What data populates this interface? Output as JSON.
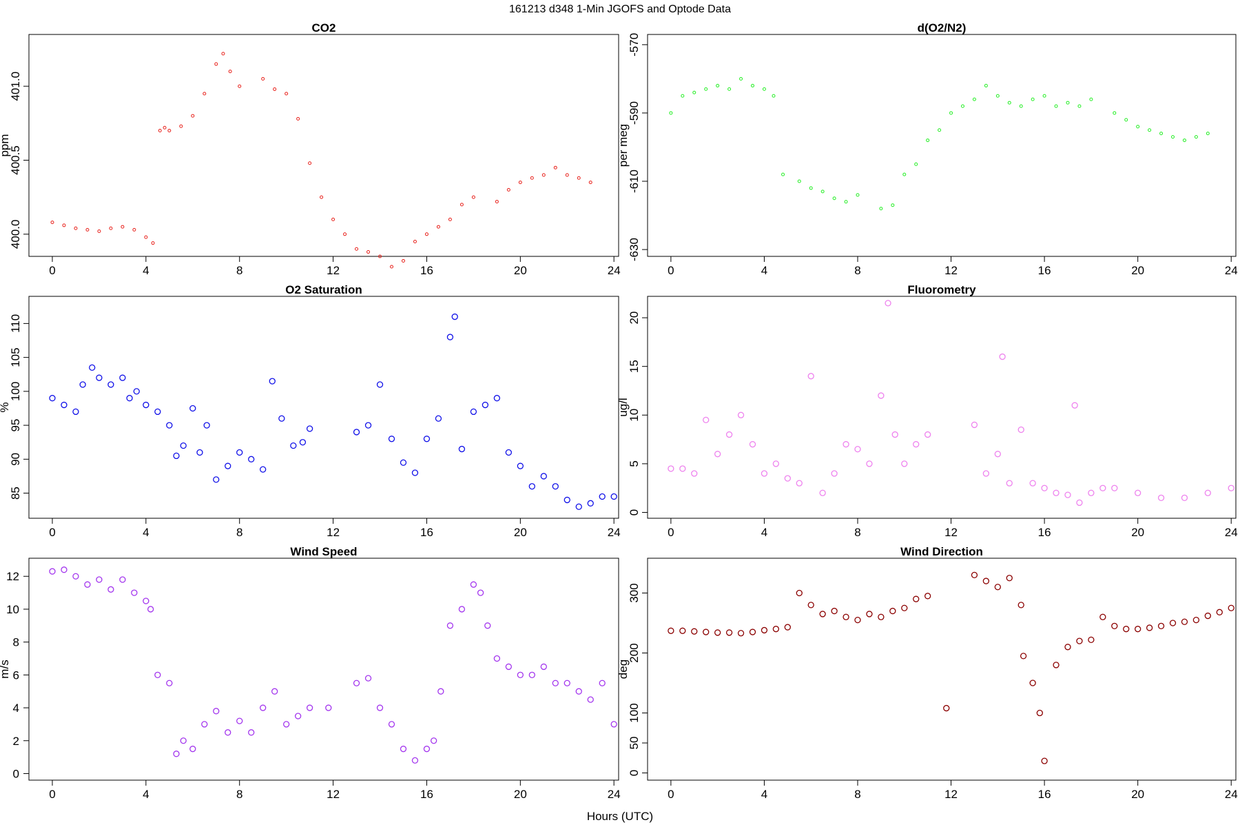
{
  "figure_title": "161213   d348   1-Min  JGOFS and Optode Data",
  "x_axis_label": "Hours (UTC)",
  "chart_data": [
    {
      "type": "scatter",
      "title": "CO2",
      "ylabel": "ppm",
      "xlabel": "",
      "xlim": [
        -1,
        24.2
      ],
      "ylim": [
        399.85,
        401.35
      ],
      "xticks": [
        0,
        4,
        8,
        12,
        16,
        20,
        24
      ],
      "xtick_labels": [
        "0",
        "4",
        "8",
        "12",
        "16",
        "20",
        "24"
      ],
      "yticks": [
        400.0,
        400.5,
        401.0
      ],
      "ytick_labels": [
        "400.0",
        "400.5",
        "401.0"
      ],
      "rotate_yticks": true,
      "marker": "small-circle",
      "color": "#e8201a",
      "series": [
        {
          "name": "CO2",
          "x": [
            0,
            0.5,
            1,
            1.5,
            2,
            2.5,
            3,
            3.5,
            4,
            4.3,
            4.6,
            4.8,
            5,
            5.5,
            6,
            6.5,
            7,
            7.3,
            7.6,
            8,
            9,
            9.5,
            10,
            10.5,
            11,
            11.5,
            12,
            12.5,
            13,
            13.5,
            14,
            14.5,
            15,
            15.5,
            16,
            16.5,
            17,
            17.5,
            18,
            19,
            19.5,
            20,
            20.5,
            21,
            21.5,
            22,
            22.5,
            23
          ],
          "y": [
            400.08,
            400.06,
            400.04,
            400.03,
            400.02,
            400.04,
            400.05,
            400.03,
            399.98,
            399.94,
            400.7,
            400.72,
            400.7,
            400.73,
            400.8,
            400.95,
            401.15,
            401.22,
            401.1,
            401.0,
            401.05,
            400.98,
            400.95,
            400.78,
            400.48,
            400.25,
            400.1,
            400.0,
            399.9,
            399.88,
            399.85,
            399.78,
            399.82,
            399.95,
            400.0,
            400.05,
            400.1,
            400.2,
            400.25,
            400.22,
            400.3,
            400.35,
            400.38,
            400.4,
            400.45,
            400.4,
            400.38,
            400.35
          ]
        }
      ]
    },
    {
      "type": "scatter",
      "title": "d(O2/N2)",
      "ylabel": "per meg",
      "xlabel": "",
      "xlim": [
        -1,
        24.2
      ],
      "ylim": [
        -632,
        -567
      ],
      "xticks": [
        0,
        4,
        8,
        12,
        16,
        20,
        24
      ],
      "xtick_labels": [
        "0",
        "4",
        "8",
        "12",
        "16",
        "20",
        "24"
      ],
      "yticks": [
        -630,
        -610,
        -590,
        -570
      ],
      "ytick_labels": [
        "-630",
        "-610",
        "-590",
        "-570"
      ],
      "rotate_yticks": true,
      "marker": "small-circle",
      "color": "#22ee22",
      "series": [
        {
          "name": "d(O2/N2)",
          "x": [
            0,
            0.5,
            1,
            1.5,
            2,
            2.5,
            3,
            3.5,
            4,
            4.4,
            4.8,
            5.5,
            6,
            6.5,
            7,
            7.5,
            8,
            9,
            9.5,
            10,
            10.5,
            11,
            11.5,
            12,
            12.5,
            13,
            13.5,
            14,
            14.5,
            15,
            15.5,
            16,
            16.5,
            17,
            17.5,
            18,
            19,
            19.5,
            20,
            20.5,
            21,
            21.5,
            22,
            22.5,
            23
          ],
          "y": [
            -590,
            -585,
            -584,
            -583,
            -582,
            -583,
            -580,
            -582,
            -583,
            -585,
            -608,
            -610,
            -612,
            -613,
            -615,
            -616,
            -614,
            -618,
            -617,
            -608,
            -605,
            -598,
            -595,
            -590,
            -588,
            -586,
            -582,
            -585,
            -587,
            -588,
            -586,
            -585,
            -588,
            -587,
            -588,
            -586,
            -590,
            -592,
            -594,
            -595,
            -596,
            -597,
            -598,
            -597,
            -596
          ]
        }
      ]
    },
    {
      "type": "scatter",
      "title": "O2 Saturation",
      "ylabel": "%",
      "xlabel": "",
      "xlim": [
        -1,
        24.2
      ],
      "ylim": [
        81.3,
        114
      ],
      "xticks": [
        0,
        4,
        8,
        12,
        16,
        20,
        24
      ],
      "xtick_labels": [
        "0",
        "4",
        "8",
        "12",
        "16",
        "20",
        "24"
      ],
      "yticks": [
        85,
        90,
        95,
        100,
        105,
        110
      ],
      "ytick_labels": [
        "85",
        "90",
        "95",
        "100",
        "105",
        "110"
      ],
      "rotate_yticks": true,
      "marker": "circle",
      "color": "#1010e8",
      "series": [
        {
          "name": "O2 Saturation",
          "x": [
            0,
            0.5,
            1,
            1.3,
            1.7,
            2,
            2.5,
            3,
            3.3,
            3.6,
            4,
            4.5,
            5,
            5.3,
            5.6,
            6,
            6.3,
            6.6,
            7,
            7.5,
            8,
            8.5,
            9,
            9.4,
            9.8,
            10.3,
            10.7,
            11,
            13,
            13.5,
            14,
            14.5,
            15,
            15.5,
            16,
            16.5,
            17,
            17.2,
            17.5,
            18,
            18.5,
            19,
            19.5,
            20,
            20.5,
            21,
            21.5,
            22,
            22.5,
            23,
            23.5,
            24
          ],
          "y": [
            99,
            98,
            97,
            101,
            103.5,
            102,
            101,
            102,
            99,
            100,
            98,
            97,
            95,
            90.5,
            92,
            97.5,
            91,
            95,
            87,
            89,
            91,
            90,
            88.5,
            101.5,
            96,
            92,
            92.5,
            94.5,
            94,
            95,
            101,
            93,
            89.5,
            88,
            93,
            96,
            108,
            111,
            91.5,
            97,
            98,
            99,
            91,
            89,
            86,
            87.5,
            86,
            84,
            83,
            83.5,
            84.5,
            84.5
          ]
        }
      ]
    },
    {
      "type": "scatter",
      "title": "Fluorometry",
      "ylabel": "ug/l",
      "xlabel": "",
      "xlim": [
        -1,
        24.2
      ],
      "ylim": [
        -0.6,
        22.2
      ],
      "xticks": [
        0,
        4,
        8,
        12,
        16,
        20,
        24
      ],
      "xtick_labels": [
        "0",
        "4",
        "8",
        "12",
        "16",
        "20",
        "24"
      ],
      "yticks": [
        0,
        5,
        10,
        15,
        20
      ],
      "ytick_labels": [
        "0",
        "5",
        "10",
        "15",
        "20"
      ],
      "rotate_yticks": true,
      "marker": "circle",
      "color": "#ee82ee",
      "series": [
        {
          "name": "Fluorometry",
          "x": [
            0,
            0.5,
            1,
            1.5,
            2,
            2.5,
            3,
            3.5,
            4,
            4.5,
            5,
            5.5,
            6,
            6.5,
            7,
            7.5,
            8,
            8.5,
            9,
            9.3,
            9.6,
            10,
            10.5,
            11,
            13,
            13.5,
            14,
            14.2,
            14.5,
            15,
            15.5,
            16,
            16.5,
            17,
            17.3,
            17.5,
            18,
            18.5,
            19,
            20,
            21,
            22,
            23,
            24
          ],
          "y": [
            4.5,
            4.5,
            4,
            9.5,
            6,
            8,
            10,
            7,
            4,
            5,
            3.5,
            3,
            14,
            2,
            4,
            7,
            6.5,
            5,
            12,
            21.5,
            8,
            5,
            7,
            8,
            9,
            4,
            6,
            16,
            3,
            8.5,
            3,
            2.5,
            2,
            1.8,
            11,
            1,
            2,
            2.5,
            2.5,
            2,
            1.5,
            1.5,
            2,
            2.5
          ]
        }
      ]
    },
    {
      "type": "scatter",
      "title": "Wind Speed",
      "ylabel": "m/s",
      "xlabel": "",
      "xlim": [
        -1,
        24.2
      ],
      "ylim": [
        -0.4,
        13.1
      ],
      "xticks": [
        0,
        4,
        8,
        12,
        16,
        20,
        24
      ],
      "xtick_labels": [
        "0",
        "4",
        "8",
        "12",
        "16",
        "20",
        "24"
      ],
      "yticks": [
        0,
        2,
        4,
        6,
        8,
        10,
        12
      ],
      "ytick_labels": [
        "0",
        "2",
        "4",
        "6",
        "8",
        "10",
        "12"
      ],
      "rotate_yticks": false,
      "marker": "circle",
      "color": "#a335ee",
      "series": [
        {
          "name": "Wind Speed",
          "x": [
            0,
            0.5,
            1,
            1.5,
            2,
            2.5,
            3,
            3.5,
            4,
            4.2,
            4.5,
            5,
            5.3,
            5.6,
            6,
            6.5,
            7,
            7.5,
            8,
            8.5,
            9,
            9.5,
            10,
            10.5,
            11,
            11.8,
            13,
            13.5,
            14,
            14.5,
            15,
            15.5,
            16,
            16.3,
            16.6,
            17,
            17.5,
            18,
            18.3,
            18.6,
            19,
            19.5,
            20,
            20.5,
            21,
            21.5,
            22,
            22.5,
            23,
            23.5,
            24
          ],
          "y": [
            12.3,
            12.4,
            12,
            11.5,
            11.8,
            11.2,
            11.8,
            11,
            10.5,
            10,
            6,
            5.5,
            1.2,
            2,
            1.5,
            3,
            3.8,
            2.5,
            3.2,
            2.5,
            4,
            5,
            3,
            3.5,
            4,
            4,
            5.5,
            5.8,
            4,
            3,
            1.5,
            0.8,
            1.5,
            2,
            5,
            9,
            10,
            11.5,
            11,
            9,
            7,
            6.5,
            6,
            6,
            6.5,
            5.5,
            5.5,
            5,
            4.5,
            5.5,
            3
          ]
        }
      ]
    },
    {
      "type": "scatter",
      "title": "Wind Direction",
      "ylabel": "deg",
      "xlabel": "",
      "xlim": [
        -1,
        24.2
      ],
      "ylim": [
        -12,
        358
      ],
      "xticks": [
        0,
        4,
        8,
        12,
        16,
        20,
        24
      ],
      "xtick_labels": [
        "0",
        "4",
        "8",
        "12",
        "16",
        "20",
        "24"
      ],
      "yticks": [
        0,
        50,
        100,
        200,
        300
      ],
      "ytick_labels": [
        "0",
        "50",
        "100",
        "200",
        "300"
      ],
      "rotate_yticks": true,
      "marker": "circle",
      "color": "#8b0000",
      "series": [
        {
          "name": "Wind Direction",
          "x": [
            0,
            0.5,
            1,
            1.5,
            2,
            2.5,
            3,
            3.5,
            4,
            4.5,
            5,
            5.5,
            6,
            6.5,
            7,
            7.5,
            8,
            8.5,
            9,
            9.5,
            10,
            10.5,
            11,
            11.8,
            13,
            13.5,
            14,
            14.5,
            15,
            15.1,
            15.5,
            15.8,
            16,
            16.5,
            17,
            17.5,
            18,
            18.5,
            19,
            19.5,
            20,
            20.5,
            21,
            21.5,
            22,
            22.5,
            23,
            23.5,
            24
          ],
          "y": [
            237,
            237,
            236,
            235,
            234,
            234,
            233,
            235,
            238,
            240,
            243,
            300,
            280,
            265,
            270,
            260,
            255,
            265,
            260,
            270,
            275,
            290,
            295,
            108,
            330,
            320,
            310,
            325,
            280,
            195,
            150,
            100,
            20,
            180,
            210,
            220,
            222,
            260,
            245,
            240,
            240,
            242,
            245,
            250,
            252,
            255,
            262,
            268,
            275
          ]
        }
      ]
    }
  ]
}
